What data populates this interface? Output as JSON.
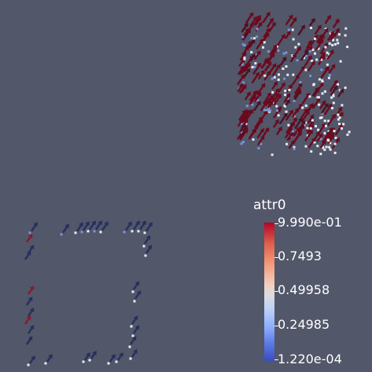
{
  "colorbar": {
    "title": "attr0",
    "labels": [
      "9.990e-01",
      "0.7493",
      "0.49958",
      "0.24985",
      "1.220e-04"
    ],
    "range": [
      0.000122,
      0.999
    ],
    "colormap": [
      "#3b4cc0",
      "#5977e3",
      "#8db0fe",
      "#bfd3f6",
      "#dddddd",
      "#f1d0be",
      "#f49a7b",
      "#dd5f4b",
      "#b40426"
    ]
  },
  "colors": {
    "background": "#525769",
    "glyph_dark_red": "#6b0a1e",
    "glyph_dark_blue": "#262f5e",
    "point_light": "#e8ecf5",
    "point_blue": "#7b93e0"
  }
}
